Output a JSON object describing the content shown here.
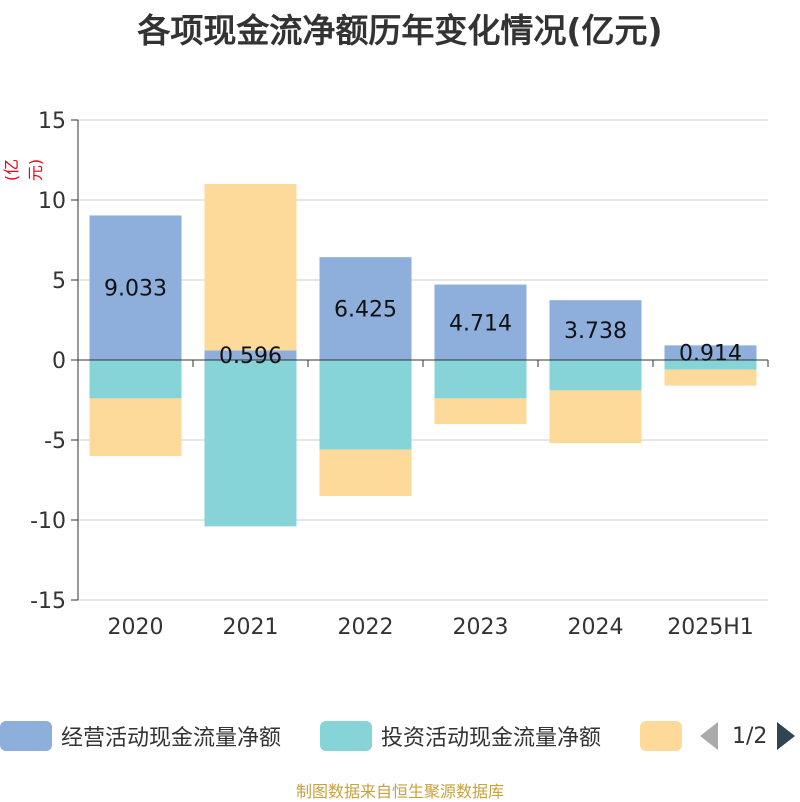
{
  "title": "各项现金流净额历年变化情况(亿元)",
  "unit_label": "(亿元)",
  "source": "制图数据来自恒生聚源数据库",
  "legend": {
    "items": [
      {
        "label": "经营活动现金流量净额",
        "color": "#8eaedb"
      },
      {
        "label": "投资活动现金流量净额",
        "color": "#86d4d8"
      },
      {
        "label": "",
        "color": "#fdd99a"
      }
    ],
    "page": "1/2"
  },
  "chart_data": {
    "type": "bar",
    "stacked": true,
    "categories": [
      "2020",
      "2021",
      "2022",
      "2023",
      "2024",
      "2025H1"
    ],
    "ylim": [
      -15,
      15
    ],
    "yticks": [
      15,
      10,
      5,
      0,
      -5,
      -10,
      -15
    ],
    "grid": true,
    "legend_position": "bottom",
    "series": [
      {
        "name": "经营活动现金流量净额",
        "color": "#8eaedb",
        "values": [
          9.033,
          0.596,
          6.425,
          4.714,
          3.738,
          0.914
        ],
        "labels": [
          "9.033",
          "0.596",
          "6.425",
          "4.714",
          "3.738",
          "0.914"
        ]
      },
      {
        "name": "投资活动现金流量净额",
        "color": "#86d4d8",
        "values": [
          -2.4,
          -10.4,
          -5.6,
          -2.4,
          -1.9,
          -0.6
        ]
      },
      {
        "color": "#fdd99a",
        "values": [
          -3.6,
          10.4,
          -2.9,
          -1.6,
          -3.3,
          -1.0
        ]
      }
    ]
  }
}
